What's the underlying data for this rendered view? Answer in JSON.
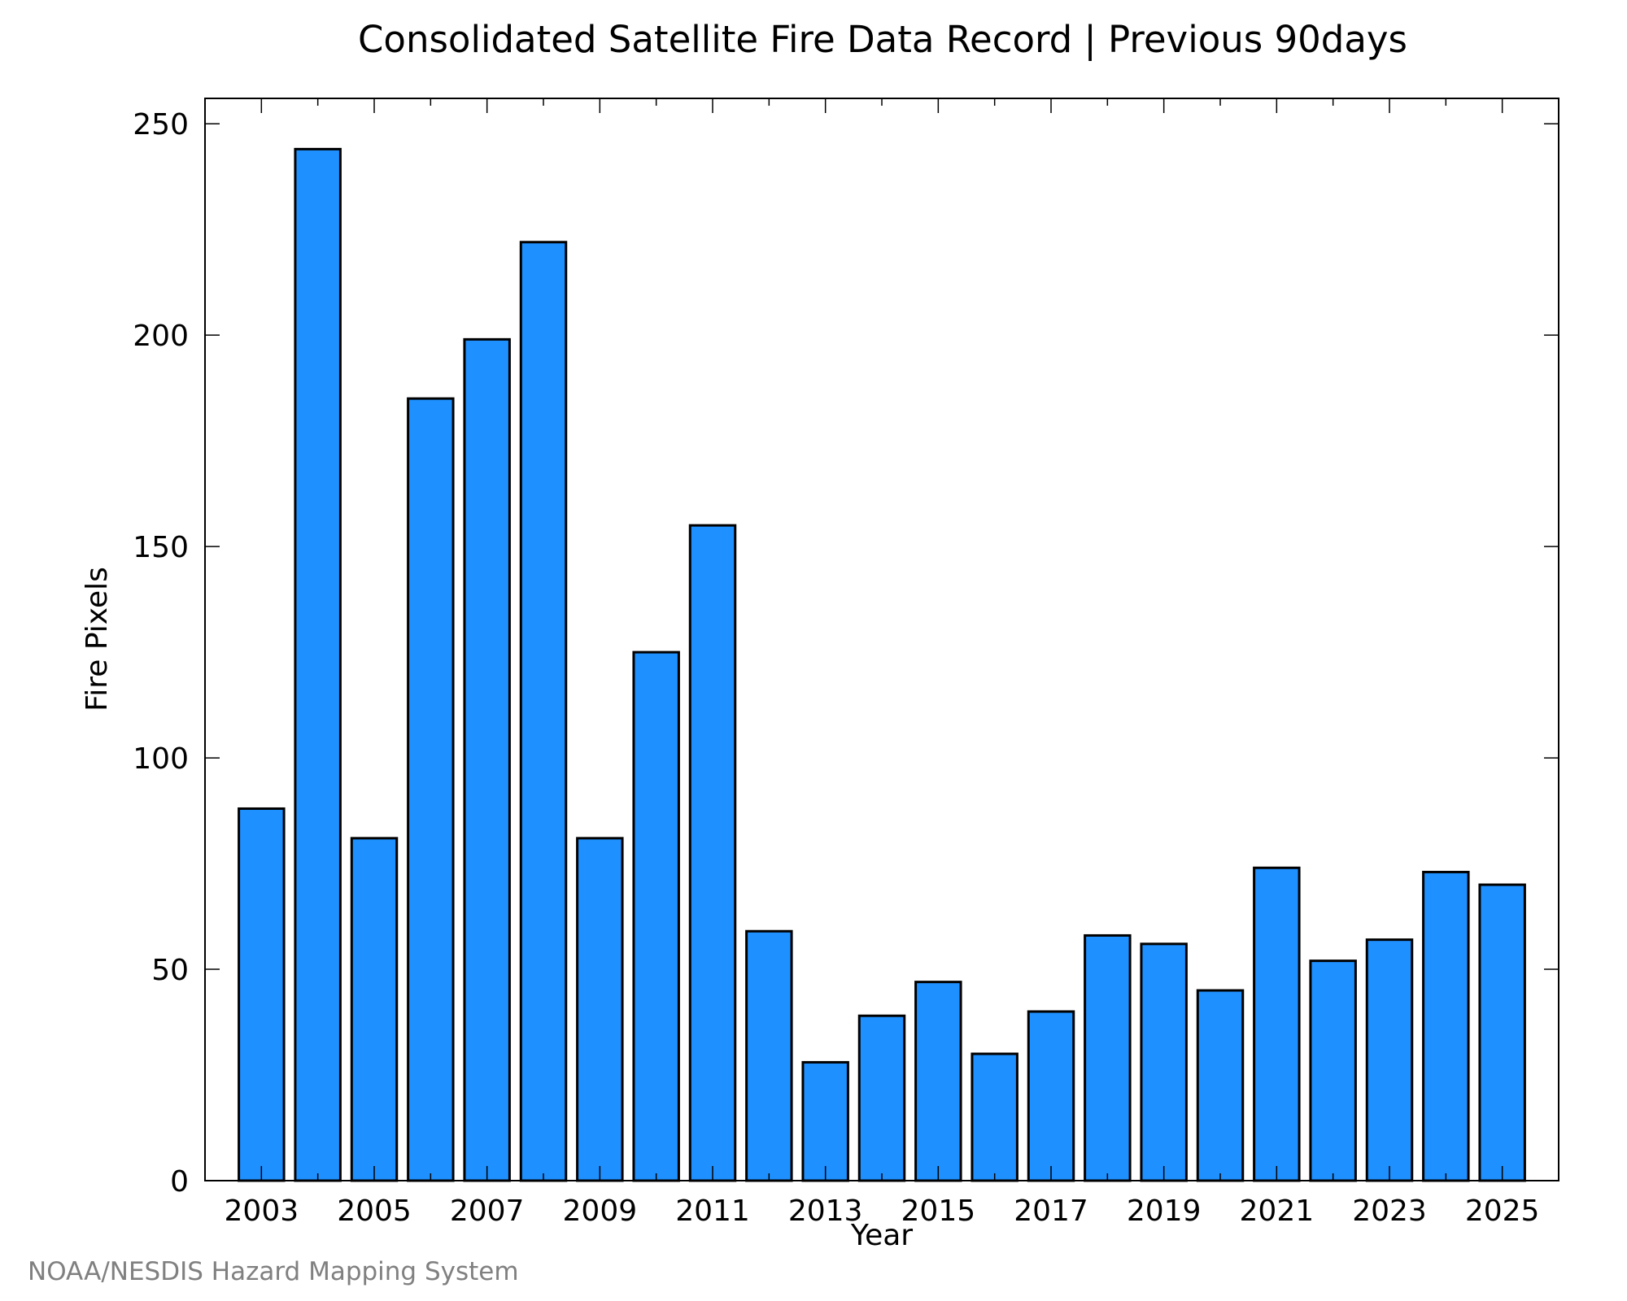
{
  "chart_data": {
    "type": "bar",
    "title": "Consolidated Satellite Fire Data Record | Previous 90days",
    "xlabel": "Year",
    "ylabel": "Fire Pixels",
    "credit": "NOAA/NESDIS Hazard Mapping System",
    "categories": [
      2003,
      2004,
      2005,
      2006,
      2007,
      2008,
      2009,
      2010,
      2011,
      2012,
      2013,
      2014,
      2015,
      2016,
      2017,
      2018,
      2019,
      2020,
      2021,
      2022,
      2023,
      2024,
      2025
    ],
    "values": [
      88,
      244,
      81,
      185,
      199,
      222,
      81,
      125,
      155,
      59,
      28,
      39,
      47,
      30,
      40,
      58,
      56,
      45,
      74,
      52,
      57,
      73,
      70
    ],
    "xlim": [
      2002.0,
      2026.0
    ],
    "ylim": [
      0,
      256
    ],
    "x_tick_values": [
      2003,
      2005,
      2007,
      2009,
      2011,
      2013,
      2015,
      2017,
      2019,
      2021,
      2023,
      2025
    ],
    "x_tick_labels": [
      "2003",
      "2005",
      "2007",
      "2009",
      "2011",
      "2013",
      "2015",
      "2017",
      "2019",
      "2021",
      "2023",
      "2025"
    ],
    "x_minor_tick_values": [
      2004,
      2006,
      2008,
      2010,
      2012,
      2014,
      2016,
      2018,
      2020,
      2022,
      2024
    ],
    "y_tick_values": [
      0,
      50,
      100,
      150,
      200,
      250
    ],
    "y_tick_labels": [
      "0",
      "50",
      "100",
      "150",
      "200",
      "250"
    ],
    "grid": false,
    "legend": "none",
    "bar_color": "#1e90ff",
    "bar_edge_color": "#000000"
  }
}
